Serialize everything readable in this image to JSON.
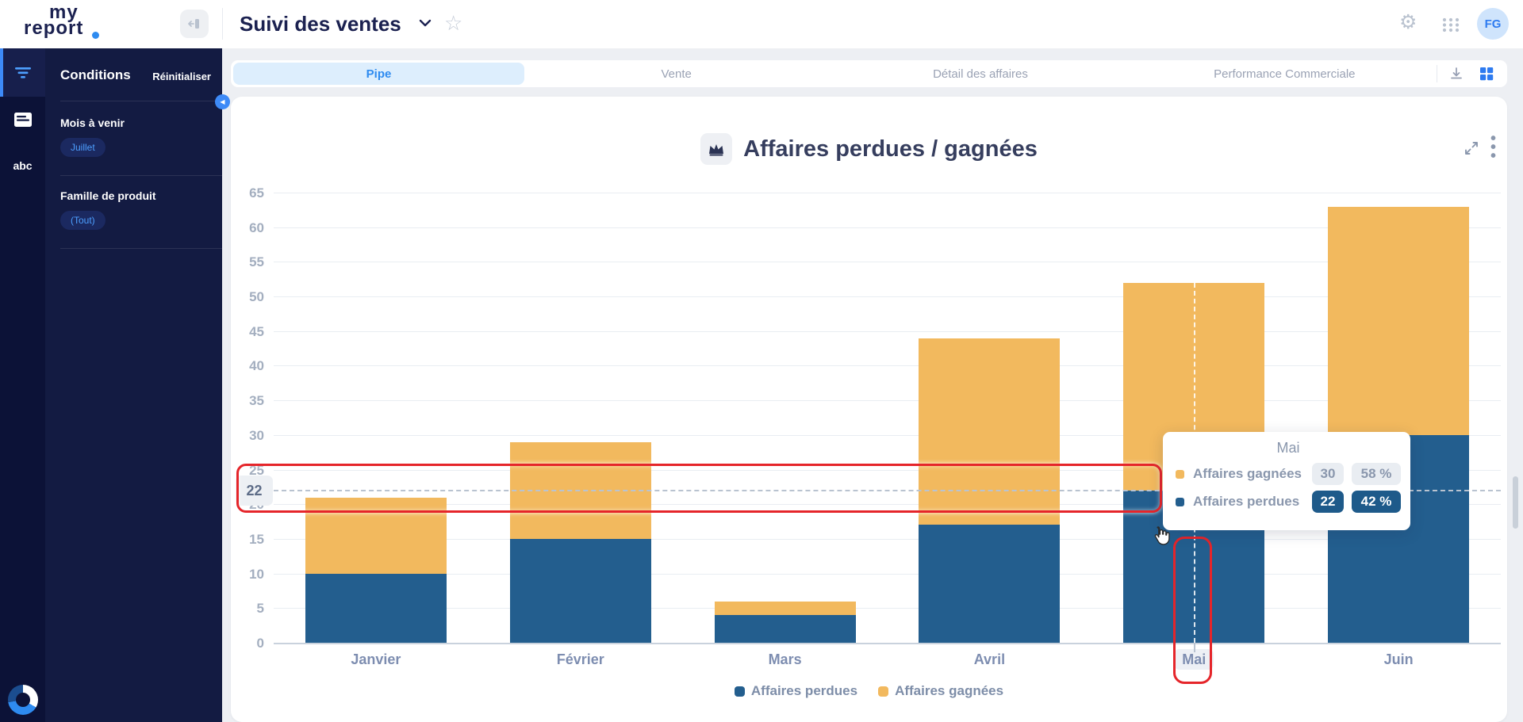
{
  "header": {
    "logo_line1": "my",
    "logo_line2": "report",
    "title": "Suivi des ventes",
    "avatar_initials": "FG"
  },
  "rail": {
    "abc_label": "abc"
  },
  "conditions": {
    "title": "Conditions",
    "reset_label": "Réinitialiser",
    "filters": [
      {
        "label": "Mois à venir",
        "value": "Juillet"
      },
      {
        "label": "Famille de produit",
        "value": "(Tout)"
      }
    ]
  },
  "tabs": {
    "items": [
      {
        "label": "Pipe",
        "active": true
      },
      {
        "label": "Vente",
        "active": false
      },
      {
        "label": "Détail des affaires",
        "active": false
      },
      {
        "label": "Performance Commerciale",
        "active": false
      }
    ]
  },
  "chart_data": {
    "type": "bar",
    "stacked": true,
    "title": "Affaires perdues / gagnées",
    "categories": [
      "Janvier",
      "Février",
      "Mars",
      "Avril",
      "Mai",
      "Juin"
    ],
    "series": [
      {
        "name": "Affaires perdues",
        "color": "#235e8e",
        "values": [
          10,
          15,
          4,
          17,
          22,
          30
        ]
      },
      {
        "name": "Affaires gagnées",
        "color": "#f2b95e",
        "values": [
          11,
          14,
          2,
          27,
          30,
          33
        ]
      }
    ],
    "ylim": [
      0,
      65
    ],
    "ytick_step": 5,
    "grid": true,
    "legend_position": "bottom",
    "highlighted_category": "Mai"
  },
  "crosshair": {
    "y_label": "22",
    "x_label": "Mai"
  },
  "tooltip": {
    "title": "Mai",
    "rows": [
      {
        "name": "Affaires gagnées",
        "value": "30",
        "pct": "58 %",
        "emph": false
      },
      {
        "name": "Affaires perdues",
        "value": "22",
        "pct": "42 %",
        "emph": true
      }
    ]
  },
  "colors": {
    "perdues": "#235e8e",
    "gagnees": "#f2b95e",
    "accent_blue": "#2e8bf0",
    "annotation_red": "#e5252a",
    "sidebar_navy": "#131b42",
    "chip_text_blue": "#4d9fff"
  }
}
